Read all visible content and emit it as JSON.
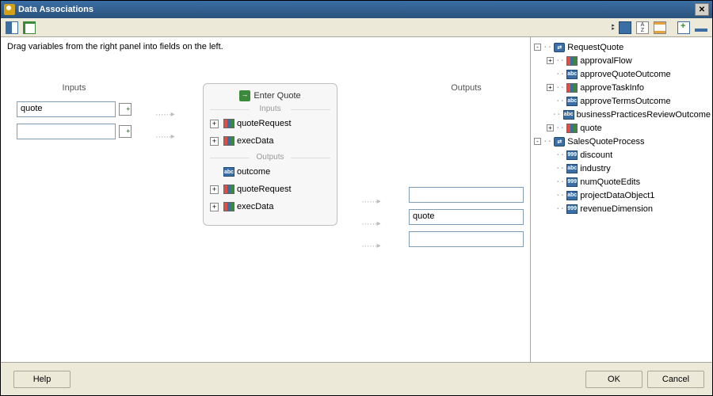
{
  "window": {
    "title": "Data Associations"
  },
  "instruction": "Drag variables from the right panel into fields on the left.",
  "columns": {
    "inputs_label": "Inputs",
    "outputs_label": "Outputs"
  },
  "input_fields": [
    {
      "value": "quote"
    },
    {
      "value": ""
    }
  ],
  "center": {
    "title": "Enter Quote",
    "inputs_label": "Inputs",
    "outputs_label": "Outputs",
    "input_items": [
      {
        "expandable": true,
        "icon": "struct",
        "label": "quoteRequest"
      },
      {
        "expandable": true,
        "icon": "struct",
        "label": "execData"
      }
    ],
    "output_items": [
      {
        "expandable": false,
        "icon": "abc",
        "label": "outcome"
      },
      {
        "expandable": true,
        "icon": "struct",
        "label": "quoteRequest"
      },
      {
        "expandable": true,
        "icon": "struct",
        "label": "execData"
      }
    ]
  },
  "output_fields": [
    {
      "value": ""
    },
    {
      "value": "quote"
    },
    {
      "value": ""
    }
  ],
  "tree": [
    {
      "depth": 0,
      "exp": "-",
      "icon": "proc",
      "label": "RequestQuote"
    },
    {
      "depth": 1,
      "exp": "+",
      "icon": "struct",
      "label": "approvalFlow"
    },
    {
      "depth": 1,
      "exp": "",
      "icon": "abc",
      "label": "approveQuoteOutcome"
    },
    {
      "depth": 1,
      "exp": "+",
      "icon": "struct",
      "label": "approveTaskInfo"
    },
    {
      "depth": 1,
      "exp": "",
      "icon": "abc",
      "label": "approveTermsOutcome"
    },
    {
      "depth": 1,
      "exp": "",
      "icon": "abc",
      "label": "businessPracticesReviewOutcome"
    },
    {
      "depth": 1,
      "exp": "+",
      "icon": "struct",
      "label": "quote"
    },
    {
      "depth": 0,
      "exp": "-",
      "icon": "proc",
      "label": "SalesQuoteProcess"
    },
    {
      "depth": 1,
      "exp": "",
      "icon": "999",
      "label": "discount"
    },
    {
      "depth": 1,
      "exp": "",
      "icon": "abc",
      "label": "industry"
    },
    {
      "depth": 1,
      "exp": "",
      "icon": "999",
      "label": "numQuoteEdits"
    },
    {
      "depth": 1,
      "exp": "",
      "icon": "abc",
      "label": "projectDataObject1"
    },
    {
      "depth": 1,
      "exp": "",
      "icon": "999",
      "label": "revenueDimension"
    }
  ],
  "buttons": {
    "help": "Help",
    "ok": "OK",
    "cancel": "Cancel"
  },
  "icons": {
    "abc_text": "abc",
    "num_text": "999"
  },
  "colors": {
    "titlebar_start": "#3a6ea5",
    "titlebar_end": "#2b527b",
    "panel_bg": "#ece9d8",
    "border": "#aca899",
    "field_border": "#7f9db9",
    "center_bg": "#f7f7f7",
    "arrow": "#bbbbbb"
  }
}
